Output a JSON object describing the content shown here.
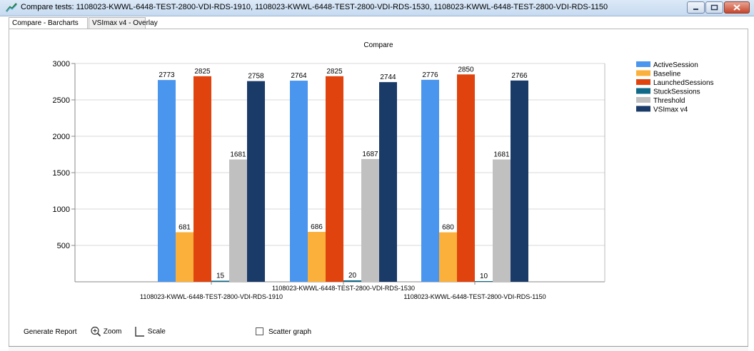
{
  "window": {
    "title": "Compare tests: 1108023-KWWL-6448-TEST-2800-VDI-RDS-1910, 1108023-KWWL-6448-TEST-2800-VDI-RDS-1530, 1108023-KWWL-6448-TEST-2800-VDI-RDS-1150"
  },
  "tabs": [
    {
      "label": "Compare - Barcharts",
      "active": true
    },
    {
      "label": "VSImax v4 - Overlay",
      "active": false
    }
  ],
  "chart_data": {
    "type": "bar",
    "title": "Compare",
    "xlabel": "",
    "ylabel": "",
    "ylim": [
      0,
      3000
    ],
    "yticks": [
      500,
      1000,
      1500,
      2000,
      2500,
      3000
    ],
    "grid": true,
    "legend_position": "top-right",
    "categories": [
      "1108023-KWWL-6448-TEST-2800-VDI-RDS-1910",
      "1108023-KWWL-6448-TEST-2800-VDI-RDS-1530",
      "1108023-KWWL-6448-TEST-2800-VDI-RDS-1150"
    ],
    "series": [
      {
        "name": "ActiveSession",
        "color": "#4a95ee",
        "values": [
          2773,
          2764,
          2776
        ]
      },
      {
        "name": "Baseline",
        "color": "#fbb03b",
        "values": [
          681,
          686,
          680
        ]
      },
      {
        "name": "LaunchedSessions",
        "color": "#e0430d",
        "values": [
          2825,
          2825,
          2850
        ]
      },
      {
        "name": "StuckSessions",
        "color": "#0f6a8a",
        "values": [
          15,
          20,
          10
        ]
      },
      {
        "name": "Threshold",
        "color": "#c0c0c0",
        "values": [
          1681,
          1687,
          1681
        ]
      },
      {
        "name": "VSImax v4",
        "color": "#1a3a68",
        "values": [
          2758,
          2744,
          2766
        ]
      }
    ]
  },
  "footer": {
    "generate_report": "Generate Report",
    "zoom": "Zoom",
    "scale": "Scale",
    "scatter_graph": "Scatter graph"
  },
  "colors": {
    "titlebar": "#c6daf0",
    "close_button": "#c9452a"
  }
}
